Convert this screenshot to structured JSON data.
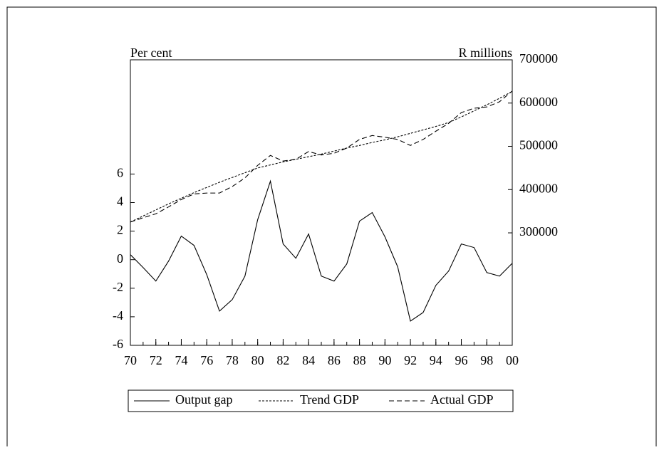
{
  "chart_data": {
    "type": "line",
    "ylabel": "Per cent",
    "y2label": "R millions",
    "x": [
      1970,
      1971,
      1972,
      1973,
      1974,
      1975,
      1976,
      1977,
      1978,
      1979,
      1980,
      1981,
      1982,
      1983,
      1984,
      1985,
      1986,
      1987,
      1988,
      1989,
      1990,
      1991,
      1992,
      1993,
      1994,
      1995,
      1996,
      1997,
      1998,
      1999,
      2000
    ],
    "xlim": [
      1970,
      2000
    ],
    "xticks": [
      {
        "value": 1970,
        "label": "70"
      },
      {
        "value": 1972,
        "label": "72"
      },
      {
        "value": 1974,
        "label": "74"
      },
      {
        "value": 1976,
        "label": "76"
      },
      {
        "value": 1978,
        "label": "78"
      },
      {
        "value": 1980,
        "label": "80"
      },
      {
        "value": 1982,
        "label": "82"
      },
      {
        "value": 1984,
        "label": "84"
      },
      {
        "value": 1986,
        "label": "86"
      },
      {
        "value": 1988,
        "label": "88"
      },
      {
        "value": 1990,
        "label": "90"
      },
      {
        "value": 1992,
        "label": "92"
      },
      {
        "value": 1994,
        "label": "94"
      },
      {
        "value": 1996,
        "label": "96"
      },
      {
        "value": 1998,
        "label": "98"
      },
      {
        "value": 2000,
        "label": "00"
      }
    ],
    "ylim": [
      -6,
      14
    ],
    "yticks": [
      -6,
      -4,
      -2,
      0,
      2,
      4,
      6
    ],
    "y2lim": [
      40000,
      700000
    ],
    "y2ticks": [
      300000,
      400000,
      500000,
      600000,
      700000
    ],
    "series": [
      {
        "name": "Output gap",
        "color": "#000000",
        "dash": "none",
        "values": [
          0.35,
          -0.55,
          -1.5,
          -0.1,
          1.65,
          1.0,
          -1.05,
          -3.6,
          -2.8,
          -1.15,
          2.8,
          5.5,
          1.1,
          0.1,
          1.8,
          -1.15,
          -1.5,
          -0.3,
          2.7,
          3.3,
          1.6,
          -0.5,
          -4.3,
          -3.7,
          -1.8,
          -0.8,
          1.1,
          0.85,
          -0.9,
          -1.15,
          -0.25
        ]
      },
      {
        "name": "Trend GDP",
        "color": "#000000",
        "dash": "3,2",
        "axis": "y2",
        "values": [
          325000,
          339000,
          353000,
          367000,
          380000,
          393000,
          405000,
          417000,
          428000,
          439000,
          450000,
          457000,
          464000,
          470000,
          476000,
          482000,
          489000,
          496000,
          502000,
          509000,
          515000,
          522000,
          530000,
          538000,
          546000,
          555000,
          568000,
          582000,
          596000,
          611000,
          627000
        ]
      },
      {
        "name": "Actual GDP",
        "color": "#000000",
        "dash": "7,4",
        "axis": "y2",
        "values": [
          325000,
          335000,
          344000,
          360000,
          377000,
          390000,
          392000,
          392000,
          407000,
          427000,
          456000,
          479000,
          466000,
          470000,
          488000,
          480000,
          484000,
          496000,
          516000,
          525000,
          521000,
          516000,
          502000,
          516000,
          535000,
          553000,
          578000,
          588000,
          591000,
          603000,
          628000
        ]
      }
    ]
  }
}
